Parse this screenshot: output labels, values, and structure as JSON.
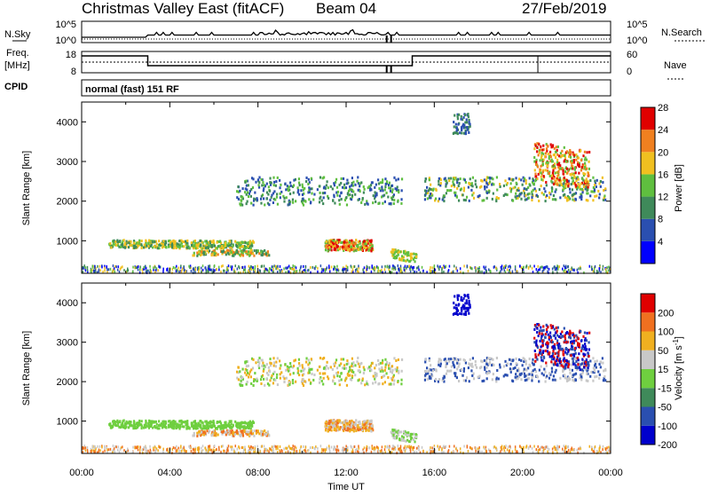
{
  "header": {
    "station": "Christmas Valley East (fitACF)",
    "beam": "Beam 04",
    "date": "27/Feb/2019"
  },
  "panels": {
    "nsky_label": "N.Sky",
    "nsearch_label": "N.Search",
    "noise_top_tick": "10^5",
    "noise_bottom_tick": "10^0",
    "freq_label_line1": "Freq.",
    "freq_label_line2": "[MHz]",
    "freq_top_tick": "18",
    "freq_bottom_tick": "8",
    "nave_label": "Nave",
    "nave_top_tick": "60",
    "nave_bottom_tick": "0",
    "cpid_label": "CPID",
    "cpid_value": "normal (fast) 151 RF"
  },
  "chart_data": [
    {
      "type": "heatmap",
      "title": "",
      "quantity": "Power",
      "xlabel": "",
      "ylabel": "Slant Range [km]",
      "colorbar_label": "Power [dB]",
      "colorbar_ticks": [
        "4",
        "8",
        "12",
        "16",
        "20",
        "24",
        "28"
      ],
      "colorbar_colors": [
        "#0000ff",
        "#2a4fb0",
        "#3f8a5a",
        "#5fbf3f",
        "#f0c020",
        "#f08020",
        "#e00000"
      ],
      "x_ticks": [
        "00:00",
        "04:00",
        "08:00",
        "12:00",
        "16:00",
        "20:00",
        "00:00"
      ],
      "y_ticks": [
        "1000",
        "2000",
        "3000",
        "4000"
      ],
      "xlim_hours": [
        0,
        24
      ],
      "ylim_km": [
        180,
        4500
      ]
    },
    {
      "type": "heatmap",
      "title": "",
      "quantity": "Velocity",
      "xlabel": "Time UT",
      "ylabel": "Slant Range [km]",
      "colorbar_label": "Velocity [m s",
      "colorbar_label_sup": "-1",
      "colorbar_ticks": [
        "200",
        "100",
        "50",
        "15",
        "-15",
        "-50",
        "-100",
        "-200"
      ],
      "colorbar_colors": [
        "#0000cc",
        "#2a4fb0",
        "#3f8a5a",
        "#6fcf3f",
        "#c8c8c8",
        "#f0b020",
        "#f07020",
        "#e00000"
      ],
      "x_ticks": [
        "00:00",
        "04:00",
        "08:00",
        "12:00",
        "16:00",
        "20:00",
        "00:00"
      ],
      "y_ticks": [
        "1000",
        "2000",
        "3000",
        "4000"
      ],
      "xlim_hours": [
        0,
        24
      ],
      "ylim_km": [
        180,
        4500
      ]
    }
  ]
}
